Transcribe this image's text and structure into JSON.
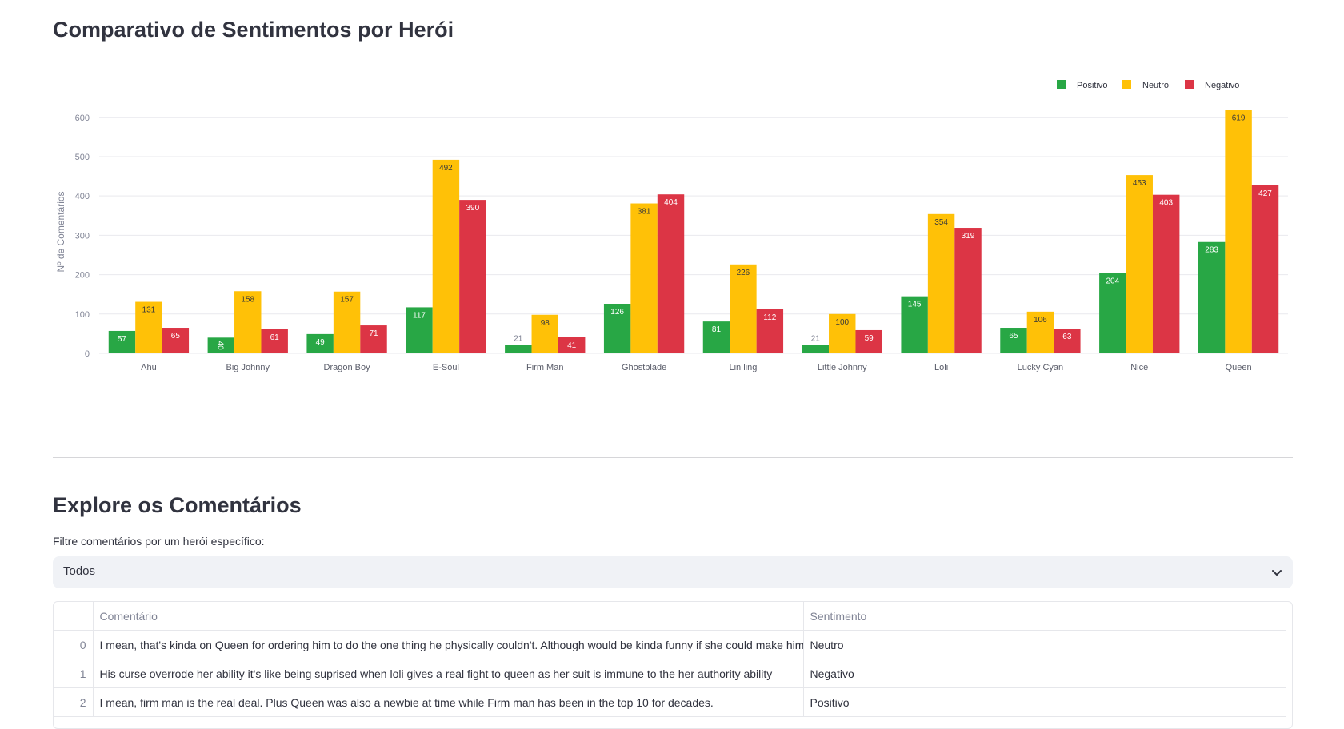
{
  "page_title": "Comparativo de Sentimentos por Herói",
  "chart_data": {
    "type": "bar",
    "categories": [
      "Ahu",
      "Big Johnny",
      "Dragon Boy",
      "E-Soul",
      "Firm Man",
      "Ghostblade",
      "Lin ling",
      "Little Johnny",
      "Loli",
      "Lucky Cyan",
      "Nice",
      "Queen"
    ],
    "series": [
      {
        "name": "Positivo",
        "color": "#28a745",
        "values": [
          57,
          40,
          49,
          117,
          21,
          126,
          81,
          21,
          145,
          65,
          204,
          283
        ]
      },
      {
        "name": "Neutro",
        "color": "#ffc107",
        "values": [
          131,
          158,
          157,
          492,
          98,
          381,
          226,
          100,
          354,
          106,
          453,
          619
        ]
      },
      {
        "name": "Negativo",
        "color": "#dc3545",
        "values": [
          65,
          61,
          71,
          390,
          41,
          404,
          112,
          59,
          319,
          63,
          403,
          427
        ]
      }
    ],
    "ylabel": "Nº de Comentários",
    "xlabel": "",
    "ylim": [
      0,
      630
    ],
    "yticks": [
      0,
      100,
      200,
      300,
      400,
      500,
      600
    ],
    "grid": true,
    "legend": "top-right"
  },
  "explore": {
    "title": "Explore os Comentários",
    "filter_label": "Filtre comentários por um herói específico:",
    "selected": "Todos"
  },
  "table": {
    "columns": [
      "",
      "Comentário",
      "Sentimento"
    ],
    "rows": [
      {
        "index": "0",
        "comment": "I mean, that's kinda on Queen for ordering him to do the one thing he physically couldn't. Although would be kinda funny if she could make him kneel. Like just imagine it.",
        "sentiment": "Neutro"
      },
      {
        "index": "1",
        "comment": "His curse overrode her ability it's like being suprised when loli gives a real fight to queen as her suit is immune to the her authority ability",
        "sentiment": "Negativo"
      },
      {
        "index": "2",
        "comment": "I mean, firm man is the real deal. Plus Queen was also a newbie at time while Firm man has been in the top 10 for decades.",
        "sentiment": "Positivo"
      }
    ]
  }
}
